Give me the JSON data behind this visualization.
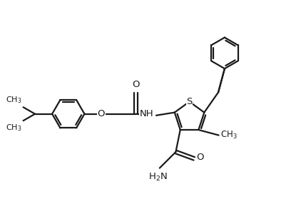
{
  "bg_color": "#ffffff",
  "line_color": "#1a1a1a",
  "lw": 1.6,
  "dbo": 0.07,
  "figsize": [
    4.22,
    3.14
  ],
  "dpi": 100,
  "xlim": [
    0,
    10
  ],
  "ylim": [
    0,
    7.45
  ]
}
